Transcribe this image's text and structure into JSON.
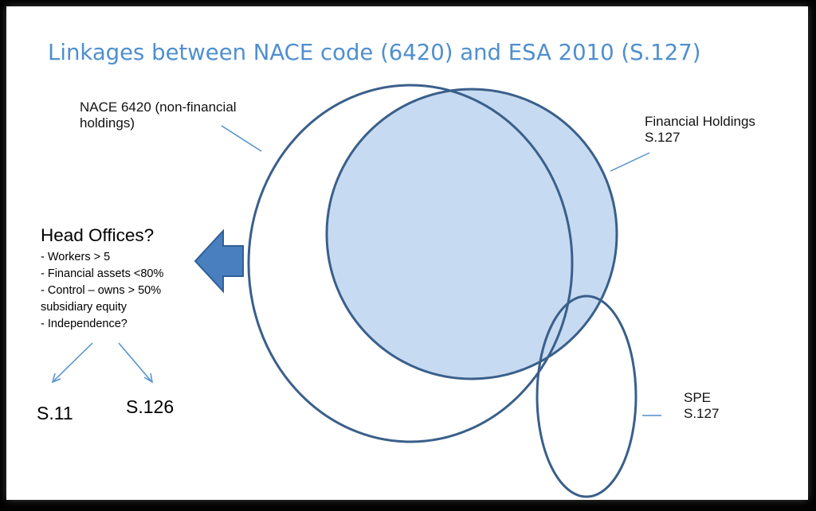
{
  "title": "Linkages between NACE code (6420) and ESA 2010 (S.127)",
  "colors": {
    "title": "#4f8fcf",
    "circle_stroke": "#3a5f8a",
    "financial_fill": "#c6daf2",
    "arrow_fill": "#4a7fbf"
  },
  "labels": {
    "nace": [
      "NACE 6420 (non-financial",
      "holdings)"
    ],
    "financial": [
      "Financial Holdings",
      "S.127"
    ],
    "spe": [
      "SPE",
      "S.127"
    ]
  },
  "head_offices": {
    "title": "Head Offices?",
    "criteria": [
      "- Workers > 5",
      "- Financial assets <80%",
      "- Control – owns > 50%",
      "subsidiary equity",
      "- Independence?"
    ]
  },
  "sectors": {
    "left": "S.11",
    "right": "S.126"
  }
}
